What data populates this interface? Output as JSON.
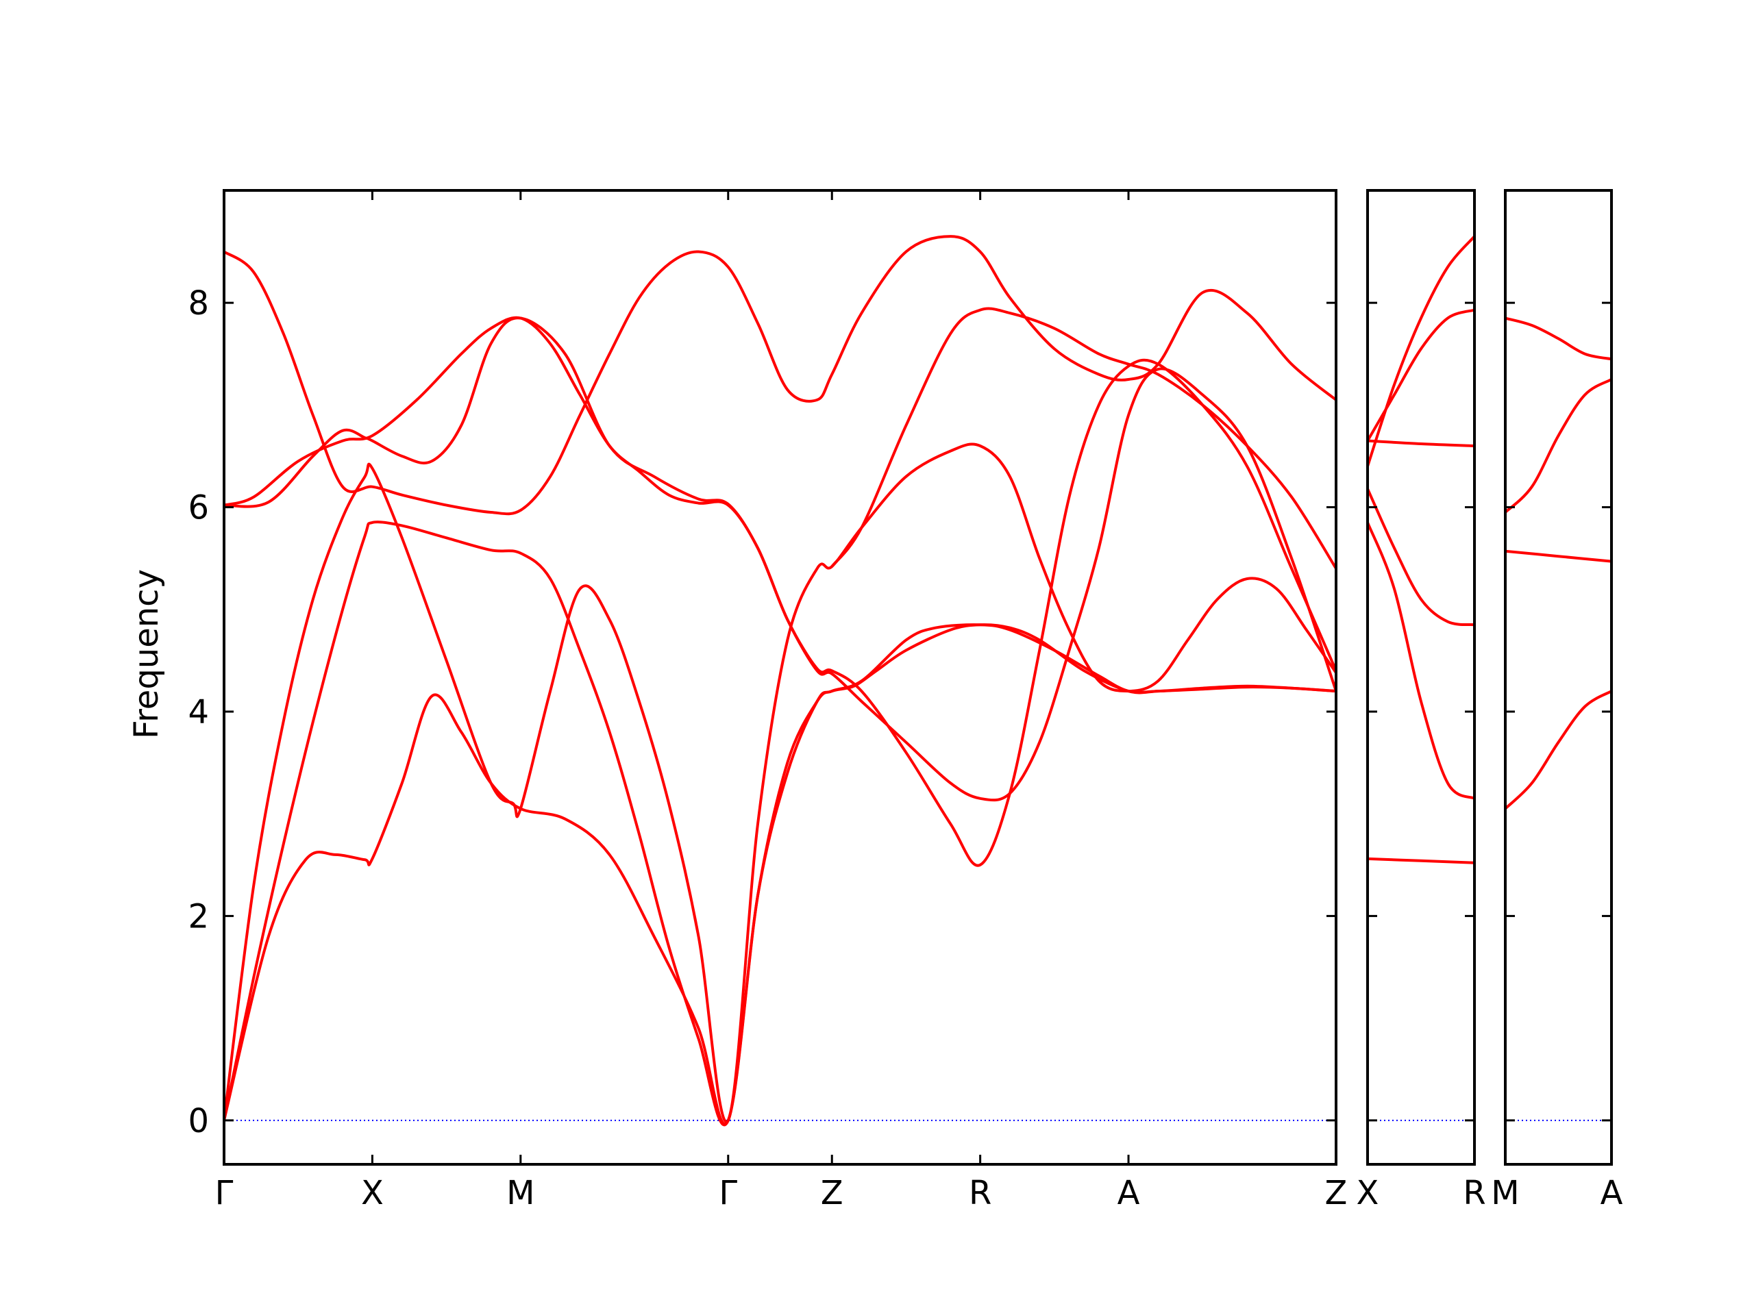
{
  "chart_data": {
    "type": "line",
    "title": "",
    "xlabel": "",
    "ylabel": "Frequency",
    "ylim": [
      -0.43,
      9.1
    ],
    "yticks": [
      0,
      2,
      4,
      6,
      8
    ],
    "grid": false,
    "colors": {
      "band": "#ff0000",
      "zero_line": "#0000ff",
      "frame": "#000000"
    },
    "panels": [
      {
        "xlim": [
          0,
          7.5
        ],
        "ticks": [
          {
            "x": 0,
            "label": "Γ"
          },
          {
            "x": 1,
            "label": "X"
          },
          {
            "x": 2,
            "label": "M"
          },
          {
            "x": 3.4,
            "label": "Γ"
          },
          {
            "x": 4.1,
            "label": "Z"
          },
          {
            "x": 5.1,
            "label": "R"
          },
          {
            "x": 6.1,
            "label": "A"
          },
          {
            "x": 7.5,
            "label": "Z"
          }
        ],
        "series": [
          {
            "x": [
              0,
              0.3,
              0.55,
              0.75,
              0.95,
              1.0,
              1.2,
              1.4,
              1.6,
              1.8,
              2.0,
              2.3,
              2.6,
              2.9,
              3.2,
              3.4,
              3.6,
              3.8,
              4.0,
              4.1,
              4.25,
              4.4,
              4.6,
              4.9,
              5.1,
              5.3,
              5.5,
              5.8,
              6.1,
              6.3,
              6.6,
              6.9,
              7.2,
              7.5
            ],
            "y": [
              0,
              1.8,
              2.55,
              2.6,
              2.55,
              2.56,
              3.3,
              4.15,
              3.8,
              3.3,
              3.05,
              2.95,
              2.6,
              1.8,
              0.9,
              0,
              2.2,
              3.5,
              4.1,
              4.2,
              4.25,
              4.4,
              4.6,
              4.8,
              4.85,
              4.82,
              4.7,
              4.4,
              4.2,
              4.2,
              4.23,
              4.25,
              4.23,
              4.2
            ]
          },
          {
            "x": [
              0,
              0.2,
              0.4,
              0.6,
              0.8,
              0.95,
              1.0,
              1.2,
              1.5,
              1.8,
              2.0,
              2.2,
              2.4,
              2.6,
              2.8,
              3.0,
              3.2,
              3.4,
              3.6,
              3.8,
              4.0,
              4.1,
              4.3,
              4.6,
              4.8,
              5.1,
              5.3,
              5.6,
              5.9,
              6.1,
              6.3,
              6.6,
              6.9,
              7.2,
              7.5
            ],
            "y": [
              0,
              1.4,
              2.7,
              3.9,
              5.0,
              5.72,
              5.85,
              5.82,
              5.7,
              5.58,
              5.55,
              5.3,
              4.6,
              3.8,
              2.8,
              1.7,
              0.8,
              0,
              2.2,
              3.4,
              4.1,
              4.2,
              4.3,
              4.7,
              4.82,
              4.85,
              4.8,
              4.6,
              4.35,
              4.2,
              4.2,
              4.22,
              4.24,
              4.23,
              4.2
            ]
          },
          {
            "x": [
              0,
              0.2,
              0.4,
              0.6,
              0.8,
              0.95,
              1.0,
              1.2,
              1.5,
              1.8,
              1.95,
              2.0,
              2.2,
              2.4,
              2.6,
              2.8,
              3.0,
              3.2,
              3.4,
              3.6,
              3.8,
              4.0,
              4.1,
              4.3,
              4.6,
              4.9,
              5.1,
              5.3,
              5.5,
              5.7,
              5.9,
              6.1,
              6.3,
              6.5,
              6.7,
              6.9,
              7.1,
              7.3,
              7.5
            ],
            "y": [
              0,
              2.3,
              3.9,
              5.1,
              5.9,
              6.3,
              6.38,
              5.7,
              4.5,
              3.3,
              3.1,
              3.05,
              4.2,
              5.2,
              4.9,
              4.1,
              3.1,
              1.8,
              0,
              2.9,
              4.7,
              5.4,
              5.42,
              5.8,
              6.3,
              6.55,
              6.6,
              6.3,
              5.5,
              4.8,
              4.3,
              4.2,
              4.3,
              4.7,
              5.1,
              5.3,
              5.2,
              4.8,
              4.38
            ]
          },
          {
            "x": [
              0,
              0.3,
              0.6,
              0.8,
              0.95,
              1.0,
              1.2,
              1.4,
              1.6,
              1.8,
              2.0,
              2.3,
              2.6,
              2.9,
              3.2,
              3.4,
              3.6,
              3.8,
              4.0,
              4.1,
              4.3,
              4.6,
              4.9,
              5.1,
              5.3,
              5.5,
              5.7,
              5.9,
              6.1,
              6.3,
              6.6,
              6.9,
              7.2,
              7.5
            ],
            "y": [
              6.02,
              6.05,
              6.5,
              6.75,
              6.68,
              6.65,
              6.5,
              6.45,
              6.8,
              7.6,
              7.85,
              7.5,
              6.6,
              6.3,
              6.08,
              6.03,
              5.6,
              4.9,
              4.4,
              4.37,
              4.1,
              3.7,
              3.3,
              3.15,
              3.2,
              3.7,
              4.6,
              5.6,
              6.9,
              7.35,
              7.1,
              6.6,
              5.5,
              4.2
            ]
          },
          {
            "x": [
              0,
              0.2,
              0.5,
              0.8,
              1.0,
              1.3,
              1.6,
              1.8,
              2.0,
              2.2,
              2.4,
              2.6,
              2.8,
              3.0,
              3.2,
              3.4,
              3.6,
              3.8,
              4.0,
              4.1,
              4.3,
              4.6,
              4.9,
              5.1,
              5.3,
              5.5,
              5.7,
              5.9,
              6.1,
              6.3,
              6.6,
              6.9,
              7.2,
              7.5
            ],
            "y": [
              6.02,
              6.1,
              6.45,
              6.65,
              6.7,
              7.05,
              7.5,
              7.75,
              7.85,
              7.6,
              7.1,
              6.6,
              6.35,
              6.12,
              6.04,
              6.02,
              5.6,
              4.9,
              4.42,
              4.4,
              4.2,
              3.6,
              2.9,
              2.5,
              3.2,
              4.6,
              6.1,
              7.0,
              7.38,
              7.4,
              7.0,
              6.4,
              5.4,
              4.4
            ]
          },
          {
            "x": [
              0,
              0.2,
              0.4,
              0.6,
              0.8,
              1.0,
              1.2,
              1.5,
              1.8,
              2.0,
              2.2,
              2.4,
              2.6,
              2.8,
              3.0,
              3.2,
              3.4,
              3.6,
              3.8,
              4.0,
              4.1,
              4.3,
              4.6,
              4.9,
              5.1,
              5.3,
              5.6,
              5.9,
              6.1,
              6.3,
              6.6,
              6.9,
              7.2,
              7.5
            ],
            "y": [
              8.5,
              8.3,
              7.7,
              6.9,
              6.2,
              6.2,
              6.12,
              6.02,
              5.95,
              5.97,
              6.3,
              6.9,
              7.5,
              8.05,
              8.38,
              8.5,
              8.35,
              7.8,
              7.15,
              7.05,
              7.3,
              7.9,
              8.5,
              8.65,
              8.5,
              8.05,
              7.55,
              7.3,
              7.25,
              7.4,
              8.1,
              7.9,
              7.4,
              7.05
            ]
          },
          {
            "x": [
              4.1,
              4.3,
              4.6,
              4.9,
              5.1,
              5.3,
              5.6,
              5.9,
              6.1,
              6.3,
              6.6,
              6.9,
              7.2,
              7.5
            ],
            "y": [
              5.42,
              5.8,
              6.8,
              7.7,
              7.93,
              7.9,
              7.75,
              7.5,
              7.4,
              7.3,
              7.0,
              6.6,
              6.1,
              5.4
            ]
          }
        ]
      },
      {
        "xlim": [
          0,
          1
        ],
        "ticks": [
          {
            "x": 0,
            "label": "X"
          },
          {
            "x": 1,
            "label": "R"
          }
        ],
        "series": [
          {
            "x": [
              0,
              0.5,
              1
            ],
            "y": [
              2.56,
              2.54,
              2.52
            ]
          },
          {
            "x": [
              0,
              0.25,
              0.5,
              0.75,
              1
            ],
            "y": [
              5.85,
              5.2,
              4.1,
              3.3,
              3.15
            ]
          },
          {
            "x": [
              0,
              0.25,
              0.5,
              0.75,
              1
            ],
            "y": [
              6.18,
              5.6,
              5.1,
              4.88,
              4.85
            ]
          },
          {
            "x": [
              0,
              0.5,
              1
            ],
            "y": [
              6.65,
              6.62,
              6.6
            ]
          },
          {
            "x": [
              0,
              0.25,
              0.5,
              0.75,
              1
            ],
            "y": [
              6.4,
              7.2,
              7.85,
              8.35,
              8.65
            ]
          },
          {
            "x": [
              0,
              0.25,
              0.5,
              0.75,
              1
            ],
            "y": [
              6.65,
              7.1,
              7.55,
              7.85,
              7.93
            ]
          }
        ]
      },
      {
        "xlim": [
          0,
          1
        ],
        "ticks": [
          {
            "x": 0,
            "label": "M"
          },
          {
            "x": 1,
            "label": "A"
          }
        ],
        "series": [
          {
            "x": [
              0,
              0.25,
              0.5,
              0.75,
              1
            ],
            "y": [
              3.05,
              3.3,
              3.7,
              4.05,
              4.2
            ]
          },
          {
            "x": [
              0,
              0.5,
              1
            ],
            "y": [
              5.57,
              5.52,
              5.47
            ]
          },
          {
            "x": [
              0,
              0.25,
              0.5,
              0.75,
              1
            ],
            "y": [
              5.95,
              6.2,
              6.7,
              7.1,
              7.25
            ]
          },
          {
            "x": [
              0,
              0.25,
              0.5,
              0.75,
              1
            ],
            "y": [
              7.85,
              7.78,
              7.65,
              7.5,
              7.45
            ]
          }
        ]
      }
    ]
  }
}
